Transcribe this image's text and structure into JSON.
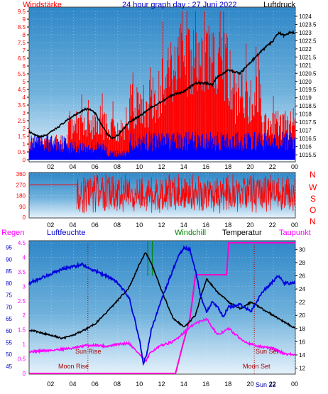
{
  "header": {
    "left_label": "Windstärke",
    "title": "24 hour graph day : 27 Juni 2022",
    "right_label": "Luftdruck"
  },
  "bottom_header": {
    "regen": "Regen",
    "luftfeuchte": "Luftfeuchte",
    "windchill": "Windchill",
    "temperatur": "Temperatur",
    "taupunkt": "Taupunkt"
  },
  "compass": [
    "N",
    "W",
    "S",
    "O",
    "N"
  ],
  "annotations": {
    "sun_rise": "Sun Rise",
    "sun_set": "Sun Set",
    "moon_rise": "Moon Rise",
    "moon_set": "Moon Set",
    "sun_set_clock": "Sun 22"
  },
  "colors": {
    "wind_speed": "#ff0000",
    "wind_gust_low": "#0000ff",
    "pressure": "#000000",
    "wind_dir": "#ff0000",
    "humidity": "#0000dd",
    "temperature": "#000000",
    "dewpoint": "#ff00ff",
    "rain": "#ff00cc",
    "windchill": "#008800",
    "label_red": "#ff0000",
    "label_blue": "#0000cc",
    "label_magenta": "#ff00ff",
    "label_green": "#008800"
  },
  "chart_data": [
    {
      "type": "line",
      "name": "wind_pressure",
      "x_ticks": [
        "02",
        "04",
        "06",
        "08",
        "10",
        "12",
        "14",
        "16",
        "18",
        "20",
        "22",
        "00"
      ],
      "left_axis": {
        "ticks": [
          "0",
          "0.5",
          "1",
          "1.5",
          "2",
          "2.5",
          "3",
          "3.5",
          "4",
          "4.5",
          "5",
          "5.5",
          "6",
          "6.5",
          "7",
          "7.5",
          "8",
          "8.5",
          "9",
          "9.5"
        ],
        "ylim": [
          0,
          9.5
        ]
      },
      "right_axis": {
        "ticks": [
          "1015.5",
          "1016",
          "1016.5",
          "1017",
          "1017.5",
          "1018",
          "1018.5",
          "1019",
          "1019.5",
          "1020",
          "1020.5",
          "1021",
          "1021.5",
          "1022",
          "1022.5",
          "1023",
          "1023.5",
          "1024"
        ],
        "ylim": [
          1015.2,
          1024.3
        ]
      },
      "pressure_series": {
        "x_hours": [
          0,
          0.5,
          1,
          1.5,
          2,
          3,
          4,
          5,
          5.5,
          6,
          6.5,
          7,
          7.5,
          8,
          8.5,
          9,
          10,
          11,
          12,
          13,
          14,
          15,
          16,
          16.5,
          17,
          18,
          19,
          20,
          21,
          22,
          22.5,
          23,
          23.5,
          24
        ],
        "values": [
          1016.9,
          1016.7,
          1016.6,
          1016.7,
          1016.9,
          1017.4,
          1017.9,
          1018.3,
          1018.3,
          1018.0,
          1017.4,
          1016.8,
          1016.5,
          1016.7,
          1017.1,
          1017.5,
          1017.9,
          1018.4,
          1018.8,
          1019.2,
          1019.4,
          1019.9,
          1019.9,
          1019.8,
          1020.3,
          1020.7,
          1020.5,
          1021.2,
          1021.9,
          1022.5,
          1023.0,
          1022.8,
          1023.0,
          1023.0
        ]
      },
      "wind_bands": [
        {
          "from": 0,
          "to": 3.5,
          "level": 1.8
        },
        {
          "from": 3.5,
          "to": 7,
          "level": 3.6
        },
        {
          "from": 7,
          "to": 9,
          "level": 3.2
        },
        {
          "from": 9,
          "to": 12,
          "level": 5.4
        },
        {
          "from": 12,
          "to": 15,
          "level": 9.5
        },
        {
          "from": 15,
          "to": 18,
          "level": 9.5
        },
        {
          "from": 18,
          "to": 21,
          "level": 6.5
        },
        {
          "from": 21,
          "to": 24,
          "level": 3.6
        }
      ],
      "wind_low_band": [
        {
          "from": 0,
          "to": 3.5,
          "level": 1.6
        },
        {
          "from": 3.5,
          "to": 7,
          "level": 1.2
        },
        {
          "from": 7,
          "to": 9,
          "level": 0.6
        },
        {
          "from": 9,
          "to": 24,
          "level": 1.8
        }
      ]
    },
    {
      "type": "line",
      "name": "wind_direction",
      "y_ticks": [
        "360",
        "270",
        "180",
        "90",
        "0"
      ],
      "ylim": [
        0,
        360
      ],
      "x_ticks": [
        "02",
        "04",
        "06",
        "08",
        "10",
        "12",
        "14",
        "16",
        "18",
        "20",
        "22",
        "00"
      ],
      "flat_segment": {
        "from": 0,
        "to": 4.3,
        "value": 270
      },
      "noisy_segment": {
        "from": 4.3,
        "to": 24,
        "min": 0,
        "max": 360,
        "center": 200
      }
    },
    {
      "type": "line",
      "name": "humidity_temperature",
      "x_ticks": [
        "02",
        "04",
        "06",
        "08",
        "10",
        "12",
        "14",
        "16",
        "18",
        "20",
        "22",
        "00"
      ],
      "rain_axis": {
        "ticks": [
          "0",
          "0.5",
          "1",
          "1.5",
          "2",
          "2.5",
          "3",
          "3.5",
          "4",
          "4.5"
        ],
        "ylim": [
          0,
          4.5
        ]
      },
      "humidity_axis": {
        "ticks": [
          "45",
          "50",
          "55",
          "60",
          "65",
          "70",
          "75",
          "80",
          "85",
          "90",
          "95"
        ],
        "ylim": [
          42,
          97
        ]
      },
      "temperature_axis": {
        "ticks": [
          "12",
          "14",
          "16",
          "18",
          "20",
          "22",
          "24",
          "26",
          "28",
          "30"
        ],
        "ylim": [
          11.2,
          31
        ]
      },
      "humidity": {
        "x_hours": [
          0,
          1,
          2,
          3,
          4,
          4.8,
          5.5,
          6,
          7,
          8,
          9,
          9.5,
          10,
          10.3,
          10.6,
          11,
          12,
          13,
          13.5,
          14,
          14.5,
          15,
          15.5,
          16,
          16.5,
          17,
          17.5,
          18,
          19,
          20,
          21,
          22,
          22.5,
          23,
          24
        ],
        "values": [
          80,
          82,
          84,
          86,
          87,
          88,
          86,
          85,
          83,
          80,
          74,
          65,
          55,
          46,
          50,
          60,
          74,
          86,
          92,
          95,
          94,
          85,
          74,
          68,
          72,
          70,
          66,
          70,
          71,
          68,
          76,
          81,
          83,
          80,
          80
        ]
      },
      "temperature": {
        "x_hours": [
          0,
          1,
          2,
          3,
          4,
          5,
          6,
          7,
          8,
          9,
          9.5,
          10,
          10.5,
          11,
          12,
          13,
          14,
          15,
          15.5,
          16,
          17,
          18,
          19,
          20,
          21,
          22,
          23,
          24
        ],
        "values": [
          17.8,
          17.4,
          17.0,
          16.5,
          17.0,
          17.8,
          18.8,
          20.5,
          22.3,
          24.2,
          26.0,
          28.0,
          29.5,
          28.0,
          23.5,
          19.5,
          18.2,
          20.0,
          23.0,
          25.5,
          23.5,
          22.0,
          21.0,
          22.0,
          21.0,
          20.0,
          19.0,
          18.0
        ]
      },
      "dewpoint": {
        "x_hours": [
          0,
          1,
          2,
          3,
          4,
          5,
          6,
          7,
          8,
          9,
          10,
          10.5,
          11,
          12,
          13,
          14,
          15,
          16,
          17,
          18,
          19,
          20,
          21,
          22,
          23,
          24
        ],
        "values": [
          14.5,
          14.6,
          14.7,
          14.9,
          15.0,
          15.4,
          15.5,
          15.3,
          15.6,
          15.8,
          14.0,
          13.0,
          14.5,
          15.5,
          16.0,
          17.5,
          18.8,
          19.5,
          17.0,
          18.0,
          16.5,
          15.6,
          15.2,
          15.0,
          14.2,
          14.0
        ]
      },
      "rain_accum": {
        "x_hours": [
          0,
          13.2,
          13.8,
          14.5,
          15,
          17.8,
          18,
          24
        ],
        "values": [
          0,
          0,
          0.9,
          1.9,
          3.4,
          3.4,
          4.5,
          4.5
        ]
      },
      "windchill_spikes": [
        10.7,
        11.1
      ]
    }
  ]
}
